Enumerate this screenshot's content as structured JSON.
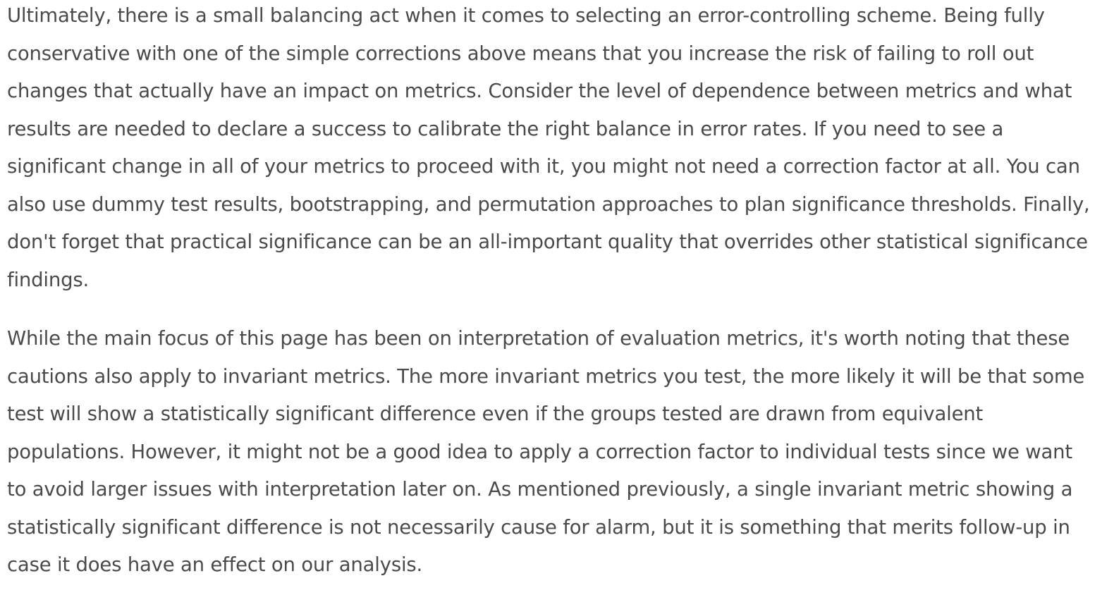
{
  "article": {
    "paragraphs": [
      "Ultimately, there is a small balancing act when it comes to selecting an error-controlling scheme. Being fully conservative with one of the simple corrections above means that you increase the risk of failing to roll out changes that actually have an impact on metrics. Consider the level of dependence between metrics and what results are needed to declare a success to calibrate the right balance in error rates. If you need to see a significant change in all of your metrics to proceed with it, you might not need a correction factor at all. You can also use dummy test results, bootstrapping, and permutation approaches to plan significance thresholds. Finally, don't forget that practical significance can be an all-important quality that overrides other statistical significance findings.",
      "While the main focus of this page has been on interpretation of evaluation metrics, it's worth noting that these cautions also apply to invariant metrics. The more invariant metrics you test, the more likely it will be that some test will show a statistically significant difference even if the groups tested are drawn from equivalent populations. However, it might not be a good idea to apply a correction factor to individual tests since we want to avoid larger issues with interpretation later on. As mentioned previously, a single invariant metric showing a statistically significant difference is not necessarily cause for alarm, but it is something that merits follow-up in case it does have an effect on our analysis."
    ]
  }
}
